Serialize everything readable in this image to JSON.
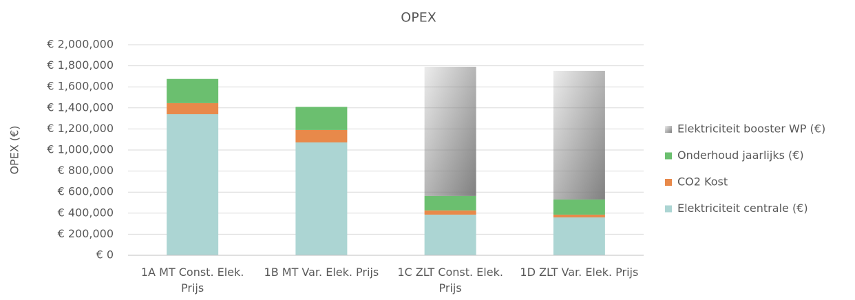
{
  "chart_data": {
    "type": "stacked_bar",
    "title": "OPEX",
    "y_axis_label": "OPEX (€)",
    "categories": [
      "1A MT Const. Elek. Prijs",
      "1B MT Var. Elek. Prijs",
      "1C ZLT Const. Elek. Prijs",
      "1D ZLT Var. Elek. Prijs"
    ],
    "series": [
      {
        "name": "Elektriciteit centrale (€)",
        "color": "#acd5d3",
        "values": [
          1340000,
          1072000,
          386000,
          360000
        ]
      },
      {
        "name": "CO2 Kost",
        "color": "#e8894a",
        "values": [
          105000,
          118000,
          40000,
          26000
        ]
      },
      {
        "name": "Onderhoud jaarlijks (€)",
        "color": "#6bbf6f",
        "values": [
          230000,
          220000,
          137000,
          144000
        ]
      },
      {
        "name": "Elektriciteit booster WP (€)",
        "color": "#808080",
        "gradient": true,
        "values": [
          null,
          null,
          1228000,
          1222000
        ]
      }
    ],
    "ylim": [
      0,
      2000000
    ],
    "yticks": [
      {
        "value": 0,
        "label": "€ 0"
      },
      {
        "value": 200000,
        "label": "€ 200,000"
      },
      {
        "value": 400000,
        "label": "€ 400,000"
      },
      {
        "value": 600000,
        "label": "€ 600,000"
      },
      {
        "value": 800000,
        "label": "€ 800,000"
      },
      {
        "value": 1000000,
        "label": "€ 1,000,000"
      },
      {
        "value": 1200000,
        "label": "€ 1,200,000"
      },
      {
        "value": 1400000,
        "label": "€ 1,400,000"
      },
      {
        "value": 1600000,
        "label": "€ 1,600,000"
      },
      {
        "value": 1800000,
        "label": "€ 1,800,000"
      },
      {
        "value": 2000000,
        "label": "€ 2,000,000"
      }
    ],
    "grid": true,
    "legend": "right"
  }
}
